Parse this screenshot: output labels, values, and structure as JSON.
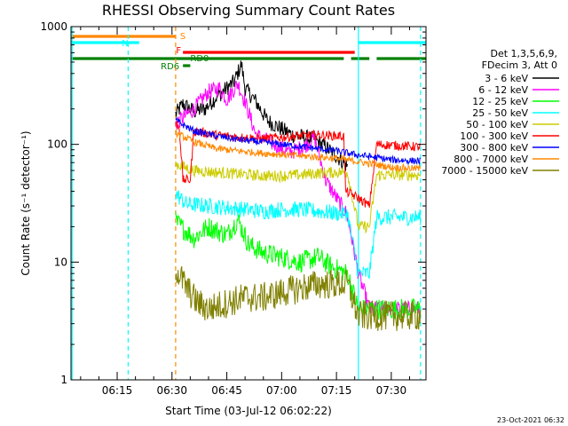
{
  "chart_data": {
    "type": "line",
    "title": "RHESSI Observing Summary Count Rates",
    "xlabel": "Start Time (03-Jul-12 06:02:22)",
    "ylabel": "Count Rate (s⁻¹ detector⁻¹)",
    "y_scale": "log",
    "xlim": [
      "06:02:22",
      "07:39:30"
    ],
    "ylim": [
      1,
      1000
    ],
    "x_ticks": [
      "06:15",
      "06:30",
      "06:45",
      "07:00",
      "07:15",
      "07:30"
    ],
    "y_ticks": [
      {
        "value": 1,
        "label": "1"
      },
      {
        "value": 10,
        "label": "10"
      },
      {
        "value": 100,
        "label": "100"
      },
      {
        "value": 1000,
        "label": "1000"
      }
    ],
    "legend": {
      "position": "right",
      "header": [
        "Det 1,3,5,6,9,",
        "FDecim 3, Att 0"
      ],
      "entries": [
        {
          "label": "3 - 6 keV",
          "color": "#000000"
        },
        {
          "label": "6 - 12 keV",
          "color": "#ff00ff"
        },
        {
          "label": "12 - 25 keV",
          "color": "#00ff00"
        },
        {
          "label": "25 - 50 keV",
          "color": "#00ffff"
        },
        {
          "label": "50 - 100 keV",
          "color": "#cccc00"
        },
        {
          "label": "100 - 300 keV",
          "color": "#ff0000"
        },
        {
          "label": "300 - 800 keV",
          "color": "#0000ff"
        },
        {
          "label": "800 - 7000 keV",
          "color": "#ff8800"
        },
        {
          "label": "7000 - 15000 keV",
          "color": "#808000"
        }
      ]
    },
    "flag_bars": [
      {
        "label": "S",
        "color": "#ff8800",
        "segments": [
          [
            "06:02:22",
            "06:31"
          ]
        ]
      },
      {
        "label": "N",
        "color": "#00ffff",
        "segments": [
          [
            "06:02:22",
            "06:21"
          ],
          [
            "07:21",
            "07:39:30"
          ]
        ]
      },
      {
        "label": "F",
        "color": "#ff0000",
        "segments": [
          [
            "06:33",
            "07:20"
          ]
        ]
      },
      {
        "label": "RD0",
        "color": "#008000",
        "segments": [
          [
            "06:02:22",
            "07:17"
          ],
          [
            "07:19",
            "07:24"
          ],
          [
            "07:26",
            "07:39:30"
          ]
        ]
      },
      {
        "label": "RD6",
        "color": "#008000",
        "segments": [
          [
            "06:33",
            "06:35"
          ]
        ]
      }
    ],
    "vlines": [
      {
        "x": "06:02:40",
        "color": "#00ffff",
        "style": "solid"
      },
      {
        "x": "06:18",
        "color": "#00ffff",
        "style": "dashed"
      },
      {
        "x": "06:31",
        "color": "#ff8800",
        "style": "dashed"
      },
      {
        "x": "07:21",
        "color": "#00ffff",
        "style": "solid"
      },
      {
        "x": "07:38",
        "color": "#00ffff",
        "style": "dashed"
      }
    ],
    "series": [
      {
        "name": "3 - 6 keV",
        "color": "#000000",
        "noise": 0.07,
        "points": [
          [
            "06:31",
            180
          ],
          [
            "06:33",
            220
          ],
          [
            "06:36",
            190
          ],
          [
            "06:39",
            200
          ],
          [
            "06:42",
            250
          ],
          [
            "06:45",
            300
          ],
          [
            "06:47",
            340
          ],
          [
            "06:49",
            480
          ],
          [
            "06:50",
            300
          ],
          [
            "06:53",
            230
          ],
          [
            "06:56",
            160
          ],
          [
            "07:00",
            135
          ],
          [
            "07:03",
            120
          ],
          [
            "07:06",
            115
          ],
          [
            "07:09",
            110
          ],
          [
            "07:12",
            95
          ],
          [
            "07:15",
            80
          ],
          [
            "07:18",
            65
          ]
        ]
      },
      {
        "name": "6 - 12 keV",
        "color": "#ff00ff",
        "noise": 0.07,
        "points": [
          [
            "06:31",
            150
          ],
          [
            "06:36",
            200
          ],
          [
            "06:40",
            280
          ],
          [
            "06:43",
            300
          ],
          [
            "06:45",
            240
          ],
          [
            "06:48",
            330
          ],
          [
            "06:50",
            230
          ],
          [
            "06:53",
            120
          ],
          [
            "06:58",
            100
          ],
          [
            "07:02",
            85
          ],
          [
            "07:06",
            95
          ],
          [
            "07:09",
            115
          ],
          [
            "07:12",
            50
          ],
          [
            "07:15",
            35
          ],
          [
            "07:18",
            25
          ],
          [
            "07:21",
            8
          ],
          [
            "07:24",
            4
          ],
          [
            "07:38",
            4
          ]
        ]
      },
      {
        "name": "12 - 25 keV",
        "color": "#00ff00",
        "noise": 0.09,
        "points": [
          [
            "06:31",
            22
          ],
          [
            "06:36",
            16
          ],
          [
            "06:40",
            20
          ],
          [
            "06:45",
            17
          ],
          [
            "06:48",
            23
          ],
          [
            "06:51",
            14
          ],
          [
            "06:55",
            12
          ],
          [
            "07:00",
            11
          ],
          [
            "07:05",
            10
          ],
          [
            "07:10",
            11
          ],
          [
            "07:14",
            9
          ],
          [
            "07:18",
            8
          ],
          [
            "07:21",
            4
          ],
          [
            "07:38",
            4
          ]
        ]
      },
      {
        "name": "25 - 50 keV",
        "color": "#00ffff",
        "noise": 0.07,
        "points": [
          [
            "06:31",
            38
          ],
          [
            "06:34",
            31
          ],
          [
            "06:40",
            30
          ],
          [
            "06:45",
            29
          ],
          [
            "06:50",
            28
          ],
          [
            "06:55",
            27
          ],
          [
            "07:00",
            28
          ],
          [
            "07:05",
            28
          ],
          [
            "07:10",
            27
          ],
          [
            "07:15",
            26
          ],
          [
            "07:18",
            26
          ],
          [
            "07:21",
            8
          ],
          [
            "07:24",
            8
          ],
          [
            "07:26",
            24
          ],
          [
            "07:38",
            24
          ]
        ]
      },
      {
        "name": "50 - 100 keV",
        "color": "#cccc00",
        "noise": 0.05,
        "points": [
          [
            "06:31",
            68
          ],
          [
            "06:36",
            60
          ],
          [
            "06:42",
            58
          ],
          [
            "06:48",
            56
          ],
          [
            "06:55",
            54
          ],
          [
            "07:00",
            54
          ],
          [
            "07:05",
            55
          ],
          [
            "07:10",
            57
          ],
          [
            "07:15",
            58
          ],
          [
            "07:18",
            58
          ],
          [
            "07:21",
            20
          ],
          [
            "07:24",
            20
          ],
          [
            "07:26",
            55
          ],
          [
            "07:38",
            55
          ]
        ]
      },
      {
        "name": "100 - 300 keV",
        "color": "#ff0000",
        "noise": 0.04,
        "points": [
          [
            "06:31",
            150
          ],
          [
            "06:32",
            140
          ],
          [
            "06:33",
            50
          ],
          [
            "06:35",
            50
          ],
          [
            "06:36",
            130
          ],
          [
            "06:42",
            120
          ],
          [
            "06:48",
            115
          ],
          [
            "06:55",
            112
          ],
          [
            "07:00",
            115
          ],
          [
            "07:05",
            118
          ],
          [
            "07:10",
            120
          ],
          [
            "07:15",
            118
          ],
          [
            "07:17",
            118
          ],
          [
            "07:17:30",
            40
          ],
          [
            "07:21",
            35
          ],
          [
            "07:24",
            30
          ],
          [
            "07:26",
            100
          ],
          [
            "07:38",
            95
          ]
        ]
      },
      {
        "name": "300 - 800 keV",
        "color": "#0000ff",
        "noise": 0.03,
        "points": [
          [
            "06:31",
            160
          ],
          [
            "06:36",
            130
          ],
          [
            "06:42",
            118
          ],
          [
            "06:48",
            110
          ],
          [
            "06:55",
            104
          ],
          [
            "07:00",
            100
          ],
          [
            "07:05",
            96
          ],
          [
            "07:10",
            92
          ],
          [
            "07:15",
            88
          ],
          [
            "07:20",
            82
          ],
          [
            "07:25",
            78
          ],
          [
            "07:30",
            74
          ],
          [
            "07:38",
            72
          ]
        ]
      },
      {
        "name": "800 - 7000 keV",
        "color": "#ff8800",
        "noise": 0.03,
        "points": [
          [
            "06:31",
            125
          ],
          [
            "06:36",
            105
          ],
          [
            "06:42",
            92
          ],
          [
            "06:48",
            88
          ],
          [
            "06:55",
            84
          ],
          [
            "07:00",
            82
          ],
          [
            "07:05",
            80
          ],
          [
            "07:10",
            78
          ],
          [
            "07:15",
            76
          ],
          [
            "07:20",
            72
          ],
          [
            "07:25",
            68
          ],
          [
            "07:30",
            64
          ],
          [
            "07:38",
            62
          ]
        ]
      },
      {
        "name": "7000 - 15000 keV",
        "color": "#808000",
        "noise": 0.13,
        "points": [
          [
            "06:31",
            9
          ],
          [
            "06:34",
            6
          ],
          [
            "06:37",
            4.5
          ],
          [
            "06:40",
            4
          ],
          [
            "06:45",
            4.5
          ],
          [
            "06:50",
            5
          ],
          [
            "06:55",
            5
          ],
          [
            "07:00",
            5.5
          ],
          [
            "07:05",
            6
          ],
          [
            "07:10",
            6.5
          ],
          [
            "07:15",
            6.5
          ],
          [
            "07:18",
            6.5
          ],
          [
            "07:21",
            3.5
          ],
          [
            "07:38",
            3.5
          ]
        ]
      }
    ]
  },
  "footer": {
    "timestamp": "23-Oct-2021 06:32"
  }
}
